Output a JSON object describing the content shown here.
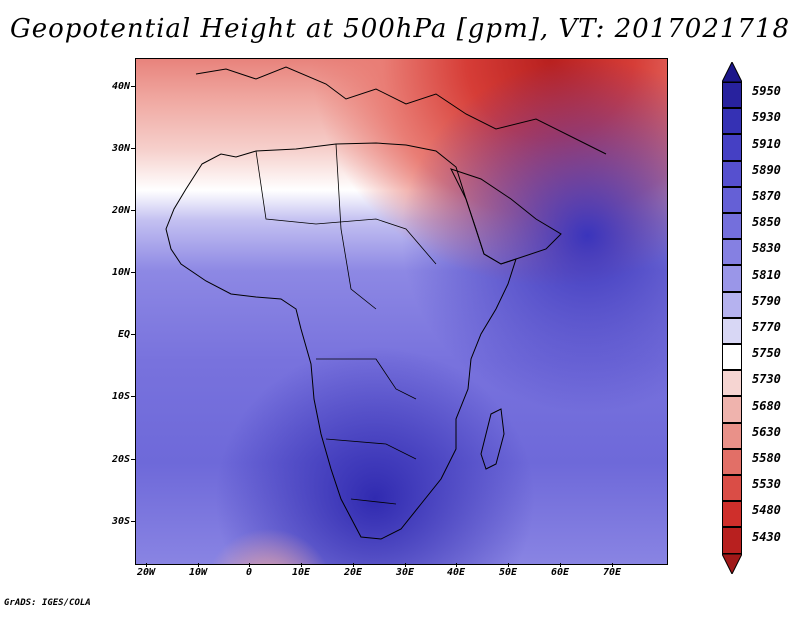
{
  "title": "Geopotential Height at 500hPa [gpm], VT: 2017021718",
  "footer": "GrADS: IGES/COLA",
  "lat_labels": [
    "40N",
    "30N",
    "20N",
    "10N",
    "EQ",
    "10S",
    "20S",
    "30S"
  ],
  "lon_labels": [
    "20W",
    "10W",
    "0",
    "10E",
    "20E",
    "30E",
    "40E",
    "50E",
    "60E",
    "70E"
  ],
  "colorbar": {
    "labels": [
      "5950",
      "5930",
      "5910",
      "5890",
      "5870",
      "5850",
      "5830",
      "5810",
      "5790",
      "5770",
      "5750",
      "5730",
      "5680",
      "5630",
      "5580",
      "5530",
      "5480",
      "5430"
    ],
    "colors": [
      "#28229e",
      "#3531b4",
      "#4540c4",
      "#5650cf",
      "#6560d6",
      "#746fdc",
      "#8580e2",
      "#9a96e8",
      "#b5b2ef",
      "#d8d7f5",
      "#ffffff",
      "#f6d5d2",
      "#efb3ad",
      "#e99189",
      "#e26f67",
      "#da4d46",
      "#cf2f2b",
      "#b8201f"
    ]
  }
}
